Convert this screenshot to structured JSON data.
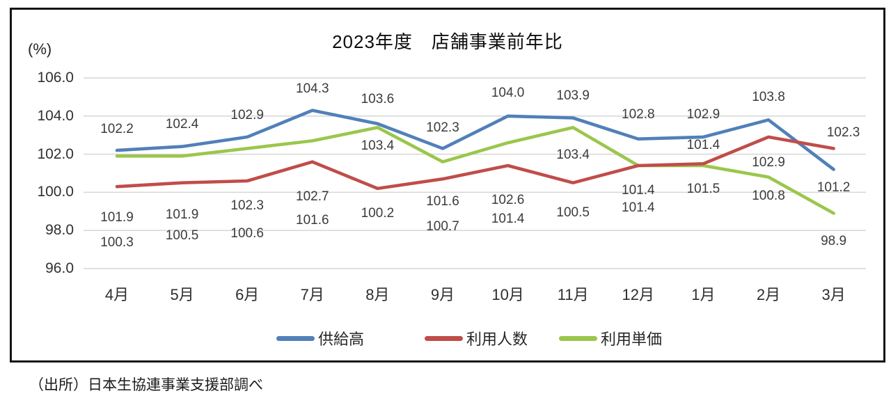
{
  "chart_data": {
    "type": "line",
    "title": "2023年度　店舗事業前年比",
    "y_unit": "(%)",
    "categories": [
      "4月",
      "5月",
      "6月",
      "7月",
      "8月",
      "9月",
      "10月",
      "11月",
      "12月",
      "1月",
      "2月",
      "3月"
    ],
    "y_ticks": [
      "106.0",
      "104.0",
      "102.0",
      "100.0",
      "98.0",
      "96.0"
    ],
    "ylim": [
      96.0,
      106.0
    ],
    "grid": true,
    "legend_position": "bottom",
    "series": [
      {
        "name": "供給高",
        "color": "#5180B9",
        "values": [
          102.2,
          102.4,
          102.9,
          104.3,
          103.6,
          102.3,
          104.0,
          103.9,
          102.8,
          102.9,
          103.8,
          101.2
        ]
      },
      {
        "name": "利用人数",
        "color": "#C04D49",
        "values": [
          100.3,
          100.5,
          100.6,
          101.6,
          100.2,
          100.7,
          101.4,
          100.5,
          101.4,
          101.5,
          102.9,
          102.3
        ]
      },
      {
        "name": "利用単価",
        "color": "#9BC64C",
        "values": [
          101.9,
          101.9,
          102.3,
          102.7,
          103.4,
          101.6,
          102.6,
          103.4,
          101.4,
          101.4,
          100.8,
          98.9
        ]
      }
    ]
  },
  "footer": {
    "source": "（出所）日本生協連事業支援部調べ"
  }
}
